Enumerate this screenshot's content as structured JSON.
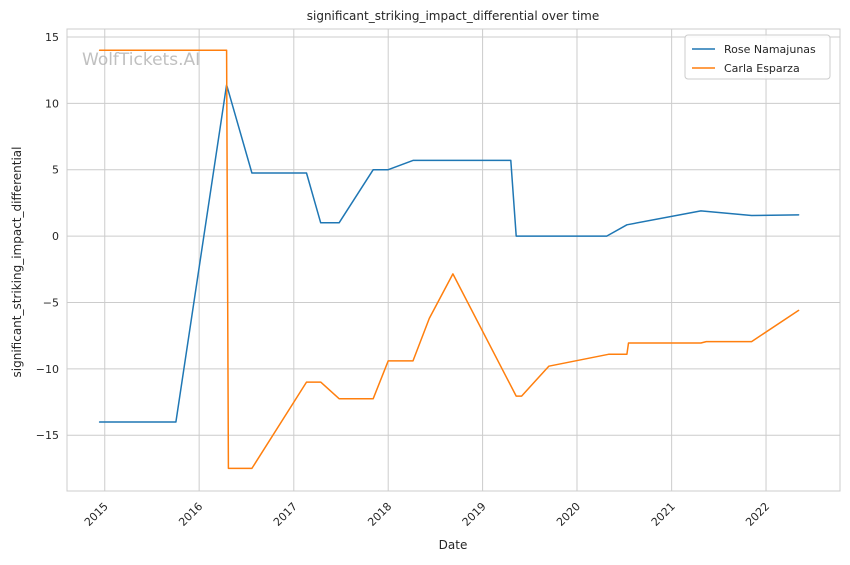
{
  "chart_data": {
    "type": "line",
    "title": "significant_striking_impact_differential over time",
    "xlabel": "Date",
    "ylabel": "significant_striking_impact_differential",
    "watermark": "WolfTickets.AI",
    "x_type": "date",
    "xlim": [
      "2014-08-08",
      "2022-10-14"
    ],
    "ylim": [
      -19.2,
      15.6
    ],
    "x_ticks": [
      {
        "date": "2015-01-01",
        "label": "2015"
      },
      {
        "date": "2016-01-01",
        "label": "2016"
      },
      {
        "date": "2017-01-01",
        "label": "2017"
      },
      {
        "date": "2018-01-01",
        "label": "2018"
      },
      {
        "date": "2019-01-01",
        "label": "2019"
      },
      {
        "date": "2020-01-01",
        "label": "2020"
      },
      {
        "date": "2021-01-01",
        "label": "2021"
      },
      {
        "date": "2022-01-01",
        "label": "2022"
      }
    ],
    "y_ticks": [
      {
        "value": 15,
        "label": "15"
      },
      {
        "value": 10,
        "label": "10"
      },
      {
        "value": 5,
        "label": "5"
      },
      {
        "value": 0,
        "label": "0"
      },
      {
        "value": -5,
        "label": "−5"
      },
      {
        "value": -10,
        "label": "−10"
      },
      {
        "value": -15,
        "label": "−15"
      }
    ],
    "grid": true,
    "legend_position": "top-right",
    "series": [
      {
        "name": "Rose Namajunas",
        "color": "#1f77b4",
        "points": [
          {
            "x": "2014-12-12",
            "y": -14.0
          },
          {
            "x": "2015-10-03",
            "y": -14.0
          },
          {
            "x": "2016-04-16",
            "y": 11.4
          },
          {
            "x": "2016-07-23",
            "y": 4.75
          },
          {
            "x": "2017-02-19",
            "y": 4.75
          },
          {
            "x": "2017-04-15",
            "y": 1.0
          },
          {
            "x": "2017-06-25",
            "y": 1.0
          },
          {
            "x": "2017-11-04",
            "y": 5.0
          },
          {
            "x": "2018-01-01",
            "y": 5.0
          },
          {
            "x": "2018-04-07",
            "y": 5.7
          },
          {
            "x": "2019-04-20",
            "y": 5.7
          },
          {
            "x": "2019-05-11",
            "y": 0.0
          },
          {
            "x": "2020-04-25",
            "y": 0.0
          },
          {
            "x": "2020-07-12",
            "y": 0.85
          },
          {
            "x": "2021-04-24",
            "y": 1.9
          },
          {
            "x": "2021-11-06",
            "y": 1.55
          },
          {
            "x": "2022-05-07",
            "y": 1.6
          }
        ]
      },
      {
        "name": "Carla Esparza",
        "color": "#ff7f0e",
        "points": [
          {
            "x": "2014-12-12",
            "y": 14.0
          },
          {
            "x": "2016-04-16",
            "y": 14.0
          },
          {
            "x": "2016-04-23",
            "y": -17.5
          },
          {
            "x": "2016-07-23",
            "y": -17.5
          },
          {
            "x": "2017-02-19",
            "y": -11.0
          },
          {
            "x": "2017-04-15",
            "y": -11.0
          },
          {
            "x": "2017-06-25",
            "y": -12.25
          },
          {
            "x": "2017-11-04",
            "y": -12.25
          },
          {
            "x": "2018-01-01",
            "y": -9.4
          },
          {
            "x": "2018-04-07",
            "y": -9.4
          },
          {
            "x": "2018-06-09",
            "y": -6.2
          },
          {
            "x": "2018-09-08",
            "y": -2.85
          },
          {
            "x": "2019-05-11",
            "y": -12.05
          },
          {
            "x": "2019-06-01",
            "y": -12.05
          },
          {
            "x": "2019-09-14",
            "y": -9.8
          },
          {
            "x": "2020-05-02",
            "y": -8.9
          },
          {
            "x": "2020-07-12",
            "y": -8.9
          },
          {
            "x": "2020-07-18",
            "y": -8.05
          },
          {
            "x": "2021-04-24",
            "y": -8.05
          },
          {
            "x": "2021-05-15",
            "y": -7.95
          },
          {
            "x": "2021-11-06",
            "y": -7.95
          },
          {
            "x": "2022-05-07",
            "y": -5.6
          }
        ]
      }
    ]
  }
}
